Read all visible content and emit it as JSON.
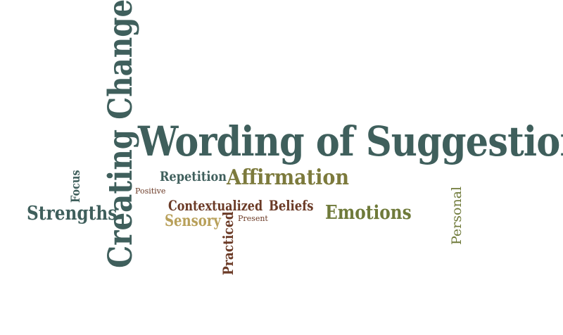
{
  "words": {
    "wording": {
      "text": "Wording of Suggestion",
      "color": "#3f5f5c"
    },
    "creating": {
      "text": "Creating Change",
      "color": "#3f5f5c"
    },
    "affirmation": {
      "text": "Affirmation",
      "color": "#7c7a3c"
    },
    "repetition": {
      "text": "Repetition",
      "color": "#3f5f5c"
    },
    "positive": {
      "text": "Positive",
      "color": "#6b3a26"
    },
    "focus": {
      "text": "Focus",
      "color": "#3f5f5c"
    },
    "strengths": {
      "text": "Strengths",
      "color": "#3f5f5c"
    },
    "contextualized": {
      "text": "Contextualized",
      "color": "#6b3a26"
    },
    "beliefs": {
      "text": "Beliefs",
      "color": "#6b3a26"
    },
    "emotions": {
      "text": "Emotions",
      "color": "#6f7a3a"
    },
    "sensory": {
      "text": "Sensory",
      "color": "#b8a05a"
    },
    "present": {
      "text": "Present",
      "color": "#6b3a26"
    },
    "practiced": {
      "text": "Practiced",
      "color": "#6b3a26"
    },
    "personal": {
      "text": "Personal",
      "color": "#6f7a3a"
    }
  }
}
